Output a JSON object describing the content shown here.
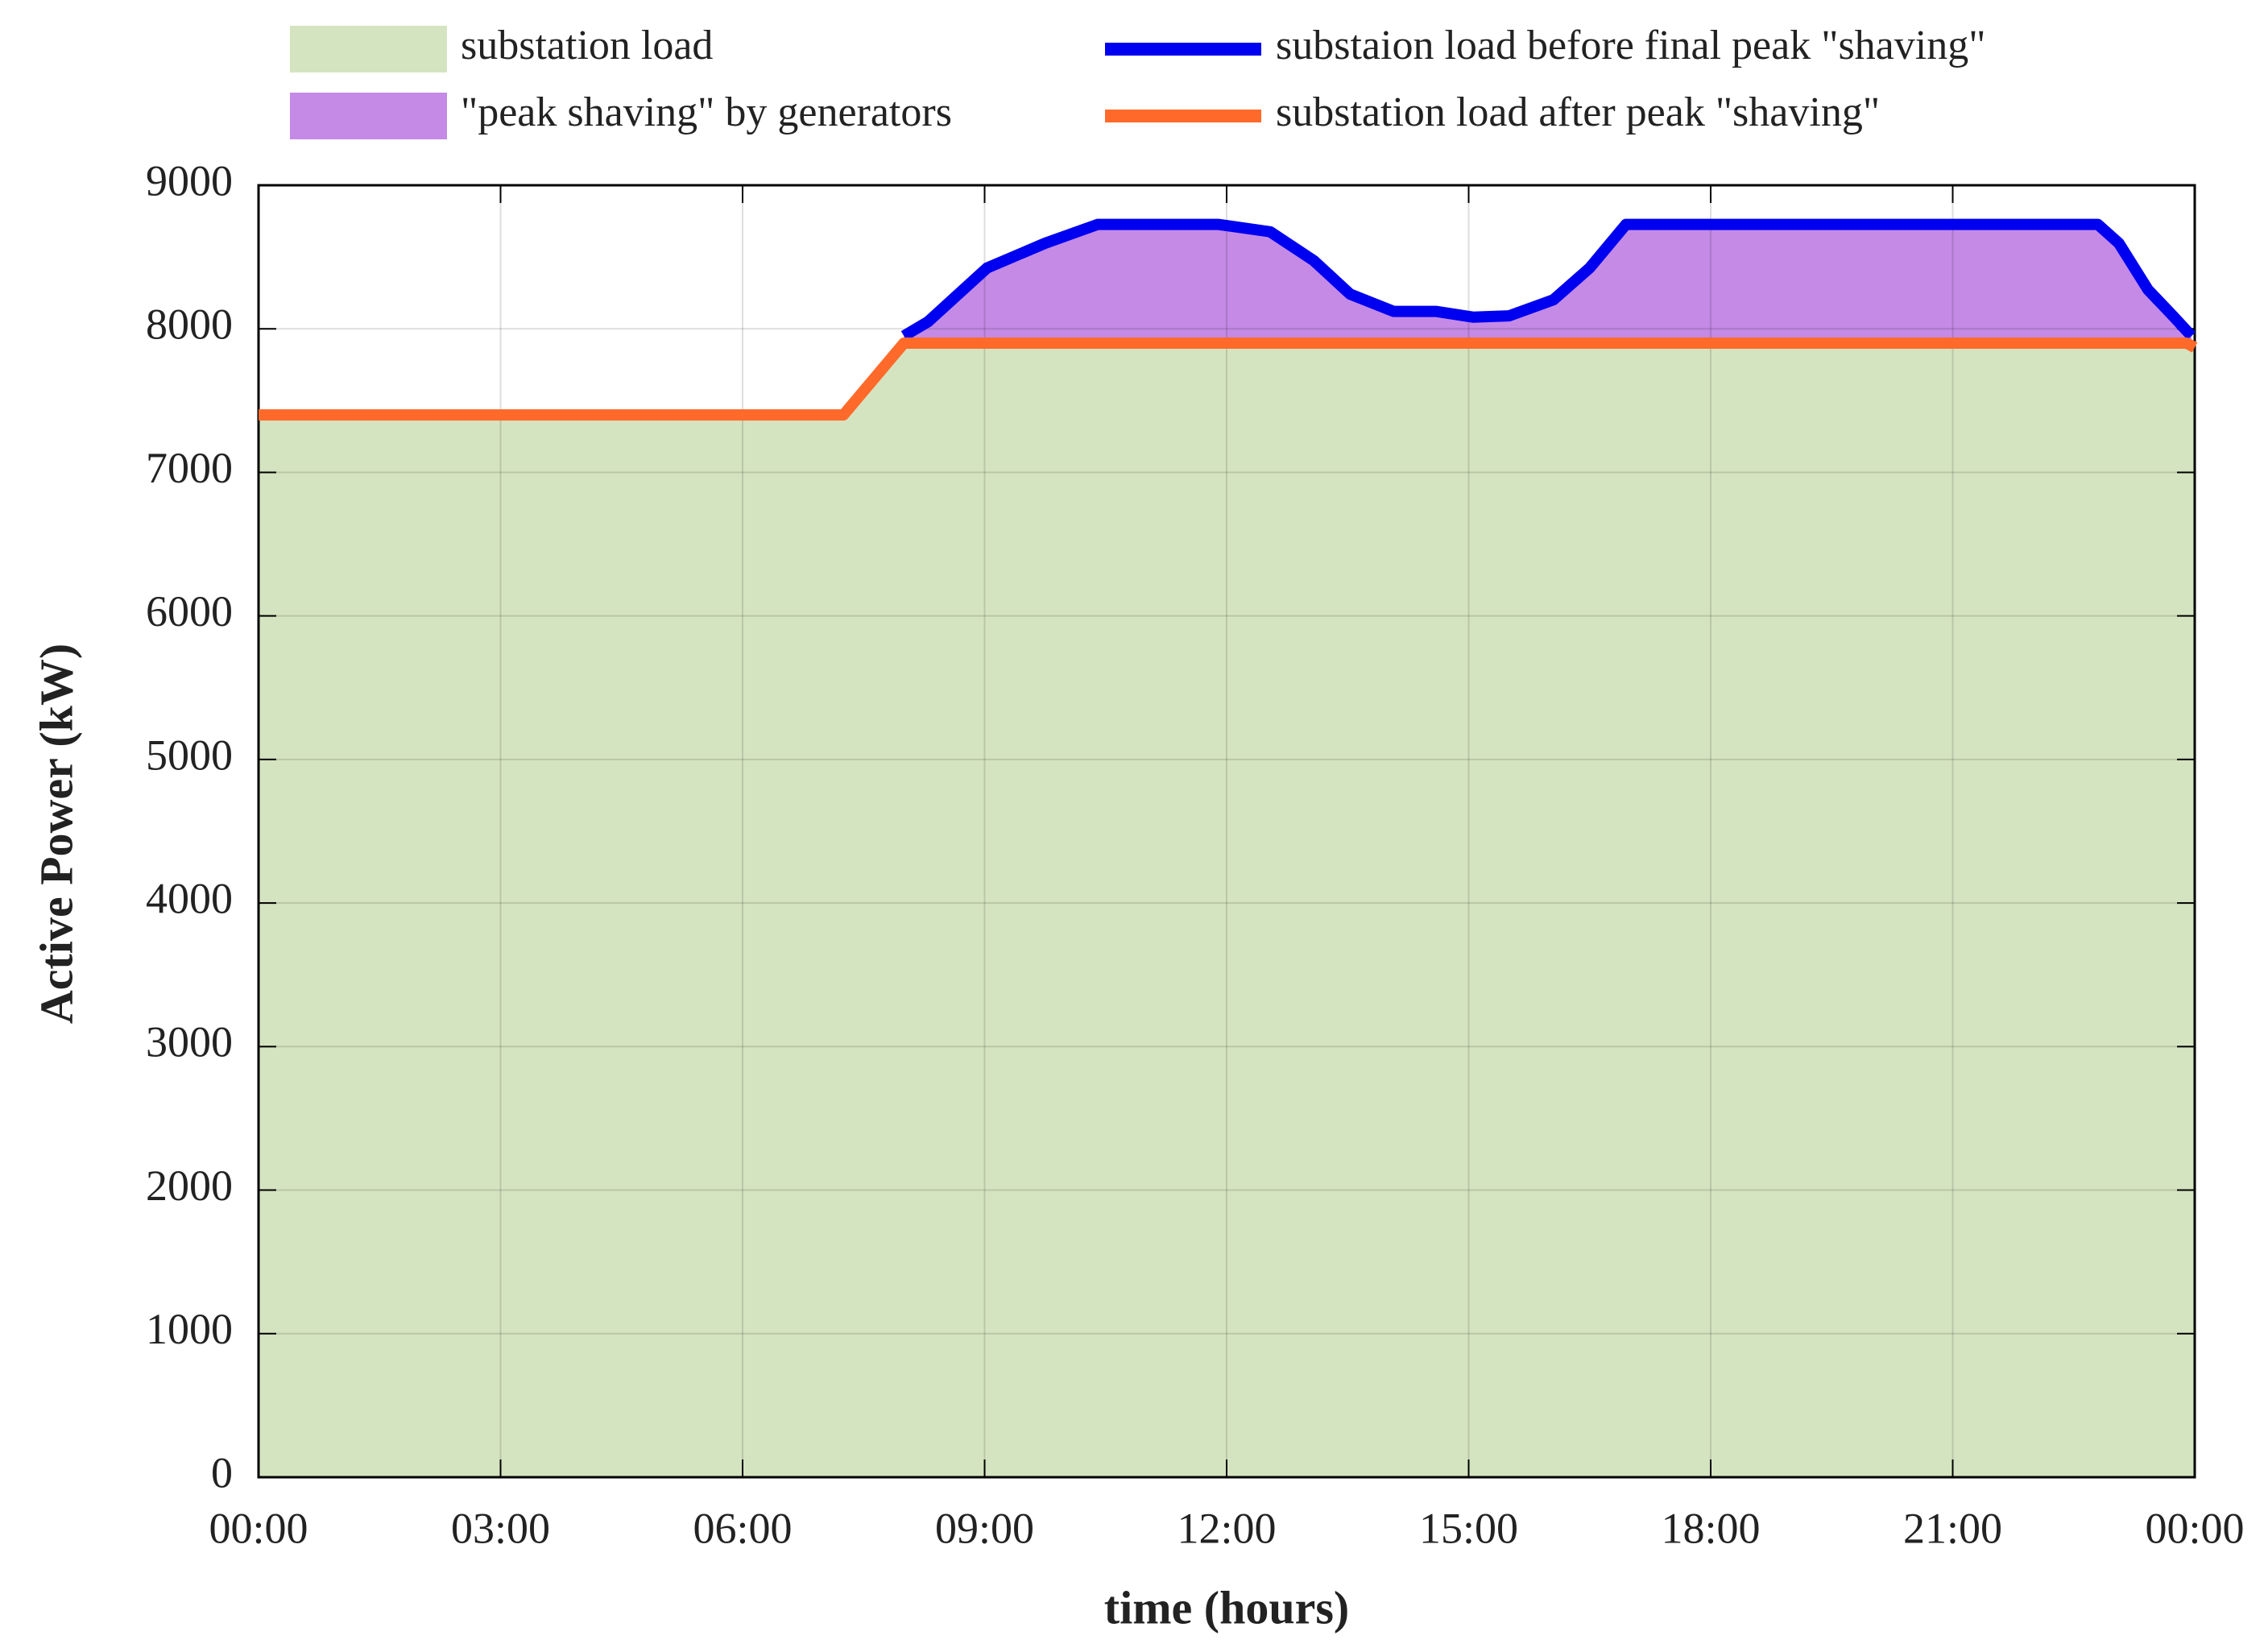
{
  "chart_data": {
    "type": "line",
    "xlabel": "time (hours)",
    "ylabel": "Active Power (kW)",
    "xlim": [
      0,
      24
    ],
    "xticks": [
      {
        "value": 0,
        "label": "00:00"
      },
      {
        "value": 3,
        "label": "03:00"
      },
      {
        "value": 6,
        "label": "06:00"
      },
      {
        "value": 9,
        "label": "09:00"
      },
      {
        "value": 12,
        "label": "12:00"
      },
      {
        "value": 15,
        "label": "15:00"
      },
      {
        "value": 18,
        "label": "18:00"
      },
      {
        "value": 21,
        "label": "21:00"
      },
      {
        "value": 24,
        "label": "00:00"
      }
    ],
    "ylim": [
      0,
      9000
    ],
    "yticks": [
      0,
      1000,
      2000,
      3000,
      4000,
      5000,
      6000,
      7000,
      8000,
      9000
    ],
    "grid": true,
    "areas": [
      {
        "name": "substation load",
        "color": "#d5e4c0"
      },
      {
        "name": "\"peak shaving\" by generators",
        "color": "#c48ae6"
      }
    ],
    "series": [
      {
        "name": "substaion load before final peak \"shaving\"",
        "color": "#0000f0",
        "x": [
          8,
          8.3,
          9.03,
          9.75,
          10.4,
          11.9,
          12.54,
          13.08,
          13.53,
          14.07,
          14.6,
          15.06,
          15.5,
          16.05,
          16.5,
          16.95,
          22.8,
          23.06,
          23.42,
          23.73,
          23.96
        ],
        "values": [
          7950,
          8050,
          8424,
          8596,
          8727,
          8727,
          8676,
          8475,
          8242,
          8121,
          8121,
          8081,
          8090,
          8202,
          8424,
          8727,
          8727,
          8596,
          8273,
          8090,
          7950
        ]
      },
      {
        "name": "substation load after peak \"shaving\"",
        "color": "#ff6a2a",
        "x": [
          0,
          7.25,
          8,
          23.9,
          24
        ],
        "values": [
          7400,
          7400,
          7900,
          7900,
          7870
        ]
      }
    ]
  }
}
